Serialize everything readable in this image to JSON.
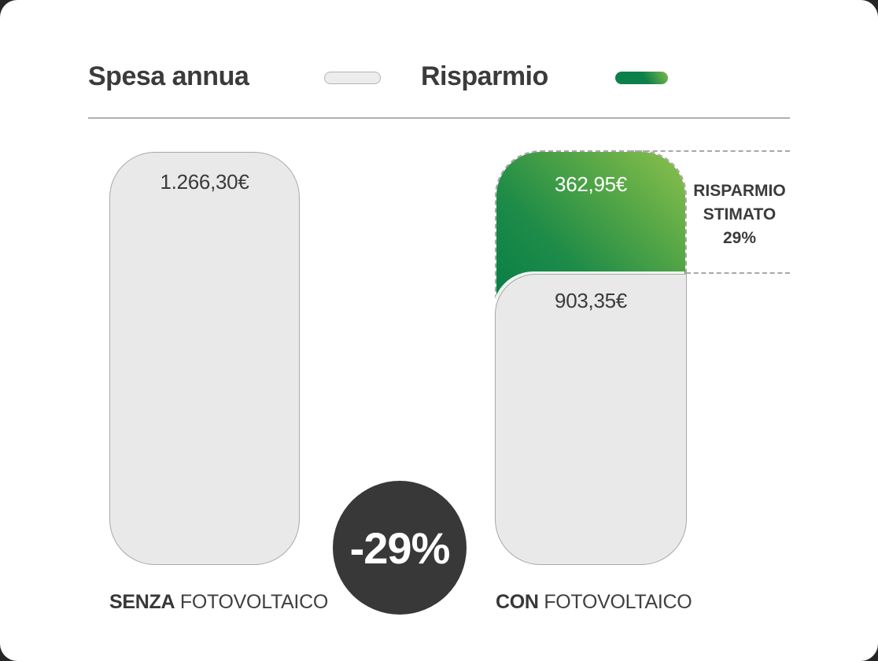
{
  "page": {
    "card_bg": "#ffffff",
    "outer_bg": "#262626",
    "text_color": "#3b3b3b"
  },
  "legend": {
    "items": [
      {
        "label": "Spesa annua",
        "swatch": "gray-pill",
        "color": "#ededed",
        "border": "#b3b3b3"
      },
      {
        "label": "Risparmio",
        "swatch": "green-pill",
        "color_from": "#0c8049",
        "color_to": "#7db94b"
      }
    ]
  },
  "chart_data": {
    "type": "bar",
    "title": "Spesa annua / Risparmio",
    "categories": [
      "SENZA FOTOVOLTAICO",
      "CON FOTOVOLTAICO"
    ],
    "series": [
      {
        "name": "Spesa annua",
        "values": [
          1266.3,
          903.35
        ]
      },
      {
        "name": "Risparmio",
        "values": [
          0,
          362.95
        ]
      }
    ],
    "currency": "EUR",
    "value_labels": {
      "senza_total": "1.266,30€",
      "con_risparmio": "362,95€",
      "con_spesa": "903,35€"
    },
    "legend_position": "top",
    "grid": false,
    "annotations": [
      {
        "text": "RISPARMIO STIMATO 29%",
        "target": "savings segment of CON FOTOVOLTAICO"
      },
      {
        "text": "-29%",
        "type": "circular badge between bars"
      }
    ],
    "colors": {
      "expense_fill": "#e9e9e9",
      "expense_border": "#a9a9a9",
      "saving_gradient_dark": "#067e46",
      "saving_gradient_light": "#8cc04d",
      "badge_bg": "#383838",
      "dash_color": "#a8a8a8"
    }
  },
  "bars": {
    "left": {
      "value_label": "1.266,30€",
      "category_bold": "SENZA",
      "category_rest": "FOTOVOLTAICO"
    },
    "right": {
      "saving_label": "362,95€",
      "expense_label": "903,35€",
      "category_bold": "CON",
      "category_rest": "FOTOVOLTAICO"
    }
  },
  "annotation": {
    "line1": "RISPARMIO",
    "line2": "STIMATO",
    "line3": "29%"
  },
  "badge": {
    "label": "-29%",
    "bg": "#383838"
  }
}
